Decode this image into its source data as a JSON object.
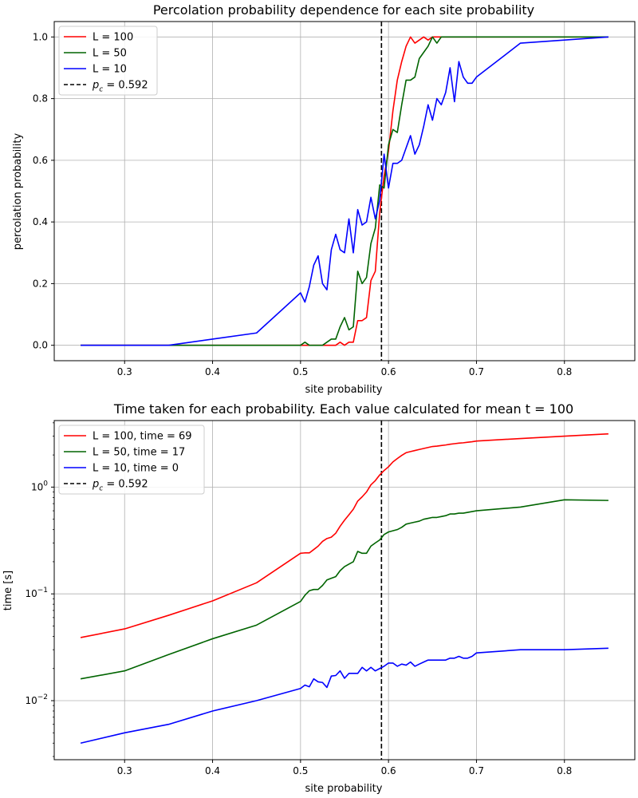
{
  "chart_data": [
    {
      "type": "line",
      "title": "Percolation probability dependence for each site probability",
      "xlabel": "site probability",
      "ylabel": "percolation probability",
      "xlim": [
        0.22,
        0.88
      ],
      "ylim": [
        -0.05,
        1.05
      ],
      "yscale": "linear",
      "xticks": [
        0.3,
        0.4,
        0.5,
        0.6,
        0.7,
        0.8
      ],
      "xtick_labels": [
        "0.3",
        "0.4",
        "0.5",
        "0.6",
        "0.7",
        "0.8"
      ],
      "yticks": [
        0.0,
        0.2,
        0.4,
        0.6,
        0.8,
        1.0
      ],
      "ytick_labels": [
        "0.0",
        "0.2",
        "0.4",
        "0.6",
        "0.8",
        "1.0"
      ],
      "grid": true,
      "legend_position": "top-left",
      "vline": {
        "x": 0.592,
        "label_prefix": "p",
        "label_sub": "c",
        "label_suffix": " = 0.592",
        "color": "#000000",
        "style": "dashed"
      },
      "series": [
        {
          "name": "L = 100",
          "color": "#ff0000",
          "x": [
            0.25,
            0.3,
            0.35,
            0.4,
            0.45,
            0.5,
            0.505,
            0.51,
            0.515,
            0.52,
            0.525,
            0.53,
            0.535,
            0.54,
            0.545,
            0.55,
            0.555,
            0.56,
            0.565,
            0.57,
            0.575,
            0.58,
            0.585,
            0.59,
            0.595,
            0.6,
            0.605,
            0.61,
            0.615,
            0.62,
            0.625,
            0.63,
            0.635,
            0.64,
            0.645,
            0.65,
            0.655,
            0.66,
            0.665,
            0.67,
            0.675,
            0.68,
            0.685,
            0.69,
            0.695,
            0.7,
            0.75,
            0.8,
            0.85
          ],
          "y": [
            0,
            0,
            0,
            0,
            0,
            0,
            0,
            0,
            0,
            0,
            0,
            0,
            0,
            0,
            0.01,
            0,
            0.01,
            0.01,
            0.08,
            0.08,
            0.09,
            0.21,
            0.24,
            0.43,
            0.55,
            0.63,
            0.76,
            0.86,
            0.92,
            0.97,
            1.0,
            0.98,
            0.99,
            1.0,
            0.99,
            1.0,
            1.0,
            1.0,
            1.0,
            1.0,
            1.0,
            1.0,
            1.0,
            1.0,
            1.0,
            1.0,
            1.0,
            1.0,
            1.0
          ]
        },
        {
          "name": "L = 50",
          "color": "#006400",
          "x": [
            0.25,
            0.3,
            0.35,
            0.4,
            0.45,
            0.5,
            0.505,
            0.51,
            0.515,
            0.52,
            0.525,
            0.53,
            0.535,
            0.54,
            0.545,
            0.55,
            0.555,
            0.56,
            0.565,
            0.57,
            0.575,
            0.58,
            0.585,
            0.59,
            0.595,
            0.6,
            0.605,
            0.61,
            0.615,
            0.62,
            0.625,
            0.63,
            0.635,
            0.64,
            0.645,
            0.65,
            0.655,
            0.66,
            0.665,
            0.67,
            0.675,
            0.68,
            0.685,
            0.69,
            0.695,
            0.7,
            0.75,
            0.8,
            0.85
          ],
          "y": [
            0,
            0,
            0,
            0,
            0,
            0,
            0.01,
            0,
            0,
            0,
            0,
            0.01,
            0.02,
            0.02,
            0.06,
            0.09,
            0.05,
            0.06,
            0.24,
            0.2,
            0.22,
            0.33,
            0.38,
            0.52,
            0.51,
            0.65,
            0.7,
            0.69,
            0.78,
            0.86,
            0.86,
            0.87,
            0.93,
            0.95,
            0.97,
            1.0,
            0.98,
            1.0,
            1.0,
            1.0,
            1.0,
            1.0,
            1.0,
            1.0,
            1.0,
            1.0,
            1.0,
            1.0,
            1.0
          ]
        },
        {
          "name": "L = 10",
          "color": "#0000ff",
          "x": [
            0.25,
            0.3,
            0.35,
            0.4,
            0.45,
            0.5,
            0.505,
            0.51,
            0.515,
            0.52,
            0.525,
            0.53,
            0.535,
            0.54,
            0.545,
            0.55,
            0.555,
            0.56,
            0.565,
            0.57,
            0.575,
            0.58,
            0.585,
            0.59,
            0.595,
            0.6,
            0.605,
            0.61,
            0.615,
            0.62,
            0.625,
            0.63,
            0.635,
            0.64,
            0.645,
            0.65,
            0.655,
            0.66,
            0.665,
            0.67,
            0.675,
            0.68,
            0.685,
            0.69,
            0.695,
            0.7,
            0.75,
            0.8,
            0.85
          ],
          "y": [
            0,
            0,
            0,
            0.02,
            0.04,
            0.17,
            0.14,
            0.19,
            0.26,
            0.29,
            0.2,
            0.18,
            0.31,
            0.36,
            0.31,
            0.3,
            0.41,
            0.3,
            0.44,
            0.39,
            0.4,
            0.48,
            0.41,
            0.47,
            0.62,
            0.51,
            0.59,
            0.59,
            0.6,
            0.64,
            0.68,
            0.62,
            0.65,
            0.71,
            0.78,
            0.73,
            0.8,
            0.78,
            0.82,
            0.9,
            0.79,
            0.92,
            0.87,
            0.85,
            0.85,
            0.87,
            0.98,
            0.99,
            1.0
          ]
        }
      ]
    },
    {
      "type": "line",
      "title": "Time taken for each probability. Each value calculated for mean t = 100",
      "xlabel": "site probability",
      "ylabel": "time [s]",
      "xlim": [
        0.22,
        0.88
      ],
      "ylim": [
        0.0028,
        4.2
      ],
      "yscale": "log",
      "xticks": [
        0.3,
        0.4,
        0.5,
        0.6,
        0.7,
        0.8
      ],
      "xtick_labels": [
        "0.3",
        "0.4",
        "0.5",
        "0.6",
        "0.7",
        "0.8"
      ],
      "yticks": [
        0.01,
        0.1,
        1
      ],
      "ytick_labels": [
        {
          "base": "10",
          "exp": "−2"
        },
        {
          "base": "10",
          "exp": "−1"
        },
        {
          "base": "10",
          "exp": "0"
        }
      ],
      "grid": true,
      "legend_position": "top-left",
      "vline": {
        "x": 0.592,
        "label_prefix": "p",
        "label_sub": "c",
        "label_suffix": " = 0.592",
        "color": "#000000",
        "style": "dashed"
      },
      "series": [
        {
          "name": "L = 100, time = 69",
          "color": "#ff0000",
          "x": [
            0.25,
            0.3,
            0.35,
            0.4,
            0.45,
            0.5,
            0.505,
            0.51,
            0.515,
            0.52,
            0.525,
            0.53,
            0.535,
            0.54,
            0.545,
            0.55,
            0.555,
            0.56,
            0.565,
            0.57,
            0.575,
            0.58,
            0.585,
            0.59,
            0.595,
            0.6,
            0.605,
            0.61,
            0.615,
            0.62,
            0.625,
            0.63,
            0.635,
            0.64,
            0.645,
            0.65,
            0.655,
            0.66,
            0.665,
            0.67,
            0.675,
            0.68,
            0.685,
            0.69,
            0.695,
            0.7,
            0.75,
            0.8,
            0.85
          ],
          "y": [
            0.039,
            0.047,
            0.063,
            0.086,
            0.127,
            0.24,
            0.242,
            0.242,
            0.26,
            0.28,
            0.31,
            0.33,
            0.34,
            0.37,
            0.43,
            0.49,
            0.55,
            0.62,
            0.74,
            0.81,
            0.9,
            1.05,
            1.15,
            1.3,
            1.43,
            1.55,
            1.72,
            1.85,
            1.98,
            2.1,
            2.15,
            2.2,
            2.25,
            2.3,
            2.35,
            2.4,
            2.42,
            2.45,
            2.48,
            2.52,
            2.55,
            2.58,
            2.6,
            2.63,
            2.66,
            2.7,
            2.85,
            3.0,
            3.15
          ]
        },
        {
          "name": "L = 50, time = 17",
          "color": "#006400",
          "x": [
            0.25,
            0.3,
            0.35,
            0.4,
            0.45,
            0.5,
            0.505,
            0.51,
            0.515,
            0.52,
            0.525,
            0.53,
            0.535,
            0.54,
            0.545,
            0.55,
            0.555,
            0.56,
            0.565,
            0.57,
            0.575,
            0.58,
            0.585,
            0.59,
            0.595,
            0.6,
            0.605,
            0.61,
            0.615,
            0.62,
            0.625,
            0.63,
            0.635,
            0.64,
            0.645,
            0.65,
            0.655,
            0.66,
            0.665,
            0.67,
            0.675,
            0.68,
            0.685,
            0.69,
            0.695,
            0.7,
            0.75,
            0.8,
            0.85
          ],
          "y": [
            0.016,
            0.019,
            0.027,
            0.038,
            0.051,
            0.085,
            0.097,
            0.107,
            0.11,
            0.11,
            0.12,
            0.135,
            0.14,
            0.145,
            0.165,
            0.18,
            0.19,
            0.2,
            0.25,
            0.24,
            0.24,
            0.28,
            0.3,
            0.32,
            0.36,
            0.38,
            0.39,
            0.4,
            0.42,
            0.45,
            0.46,
            0.47,
            0.48,
            0.5,
            0.51,
            0.52,
            0.52,
            0.53,
            0.54,
            0.56,
            0.56,
            0.57,
            0.57,
            0.58,
            0.59,
            0.6,
            0.65,
            0.76,
            0.75
          ]
        },
        {
          "name": "L = 10, time = 0",
          "color": "#0000ff",
          "x": [
            0.25,
            0.3,
            0.35,
            0.4,
            0.45,
            0.5,
            0.505,
            0.51,
            0.515,
            0.52,
            0.525,
            0.53,
            0.535,
            0.54,
            0.545,
            0.55,
            0.555,
            0.56,
            0.565,
            0.57,
            0.575,
            0.58,
            0.585,
            0.59,
            0.595,
            0.6,
            0.605,
            0.61,
            0.615,
            0.62,
            0.625,
            0.63,
            0.635,
            0.64,
            0.645,
            0.65,
            0.655,
            0.66,
            0.665,
            0.67,
            0.675,
            0.68,
            0.685,
            0.69,
            0.695,
            0.7,
            0.75,
            0.8,
            0.85
          ],
          "y": [
            0.004,
            0.005,
            0.006,
            0.008,
            0.01,
            0.013,
            0.014,
            0.0135,
            0.016,
            0.015,
            0.0148,
            0.0133,
            0.017,
            0.0172,
            0.019,
            0.0162,
            0.018,
            0.018,
            0.018,
            0.0205,
            0.019,
            0.0205,
            0.019,
            0.02,
            0.021,
            0.0225,
            0.0225,
            0.021,
            0.022,
            0.0215,
            0.023,
            0.021,
            0.022,
            0.023,
            0.024,
            0.024,
            0.024,
            0.024,
            0.024,
            0.025,
            0.025,
            0.026,
            0.025,
            0.025,
            0.026,
            0.028,
            0.03,
            0.03,
            0.031
          ]
        }
      ]
    }
  ]
}
